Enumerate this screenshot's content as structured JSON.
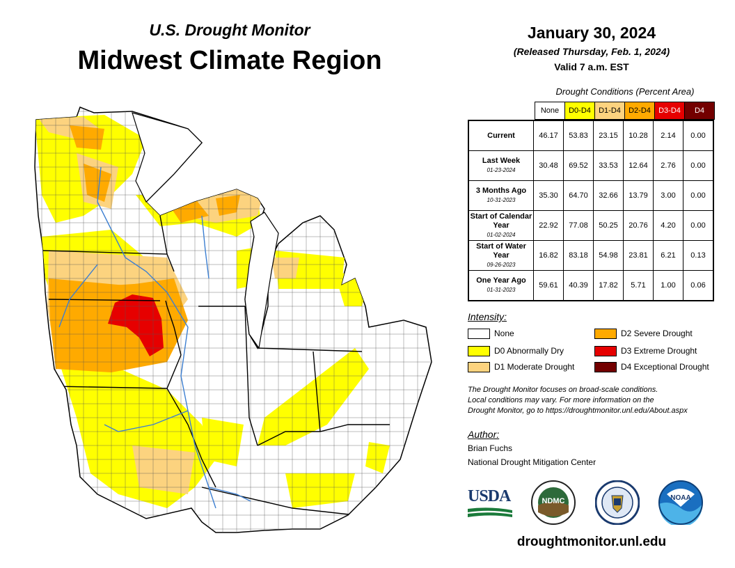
{
  "header": {
    "subtitle": "U.S. Drought Monitor",
    "title": "Midwest Climate Region"
  },
  "date_block": {
    "date": "January 30, 2024",
    "released": "(Released Thursday, Feb. 1, 2024)",
    "valid": "Valid 7 a.m. EST"
  },
  "table": {
    "caption": "Drought Conditions (Percent Area)",
    "columns": [
      {
        "label": "None",
        "color": "#ffffff",
        "text_color": "#000000"
      },
      {
        "label": "D0-D4",
        "color": "#ffff00",
        "text_color": "#000000"
      },
      {
        "label": "D1-D4",
        "color": "#fcd37f",
        "text_color": "#000000"
      },
      {
        "label": "D2-D4",
        "color": "#ffaa00",
        "text_color": "#000000"
      },
      {
        "label": "D3-D4",
        "color": "#e60000",
        "text_color": "#ffffff"
      },
      {
        "label": "D4",
        "color": "#730000",
        "text_color": "#ffffff"
      }
    ],
    "rows": [
      {
        "label": "Current",
        "date": "",
        "values": [
          "46.17",
          "53.83",
          "23.15",
          "10.28",
          "2.14",
          "0.00"
        ]
      },
      {
        "label": "Last Week",
        "date": "01-23-2024",
        "values": [
          "30.48",
          "69.52",
          "33.53",
          "12.64",
          "2.76",
          "0.00"
        ]
      },
      {
        "label": "3 Months Ago",
        "date": "10-31-2023",
        "values": [
          "35.30",
          "64.70",
          "32.66",
          "13.79",
          "3.00",
          "0.00"
        ]
      },
      {
        "label": "Start of Calendar Year",
        "date": "01-02-2024",
        "values": [
          "22.92",
          "77.08",
          "50.25",
          "20.76",
          "4.20",
          "0.00"
        ]
      },
      {
        "label": "Start of Water Year",
        "date": "09-26-2023",
        "values": [
          "16.82",
          "83.18",
          "54.98",
          "23.81",
          "6.21",
          "0.13"
        ]
      },
      {
        "label": "One Year Ago",
        "date": "01-31-2023",
        "values": [
          "59.61",
          "40.39",
          "17.82",
          "5.71",
          "1.00",
          "0.06"
        ]
      }
    ]
  },
  "legend": {
    "title": "Intensity:",
    "items": [
      {
        "label": "None",
        "color": "#ffffff"
      },
      {
        "label": "D0 Abnormally Dry",
        "color": "#ffff00"
      },
      {
        "label": "D1 Moderate Drought",
        "color": "#fcd37f"
      },
      {
        "label": "D2 Severe Drought",
        "color": "#ffaa00"
      },
      {
        "label": "D3 Extreme Drought",
        "color": "#e60000"
      },
      {
        "label": "D4 Exceptional Drought",
        "color": "#730000"
      }
    ]
  },
  "note": {
    "line1": "The Drought Monitor focuses on broad-scale conditions.",
    "line2": "Local conditions may vary. For more information on the",
    "line3": "Drought Monitor, go to https://droughtmonitor.unl.edu/About.aspx"
  },
  "author": {
    "title": "Author:",
    "name": "Brian Fuchs",
    "org": "National Drought Mitigation Center"
  },
  "logos": {
    "usda": "USDA",
    "ndmc": "NDMC",
    "noaa": "NOAA"
  },
  "footer": {
    "url": "droughtmonitor.unl.edu"
  }
}
